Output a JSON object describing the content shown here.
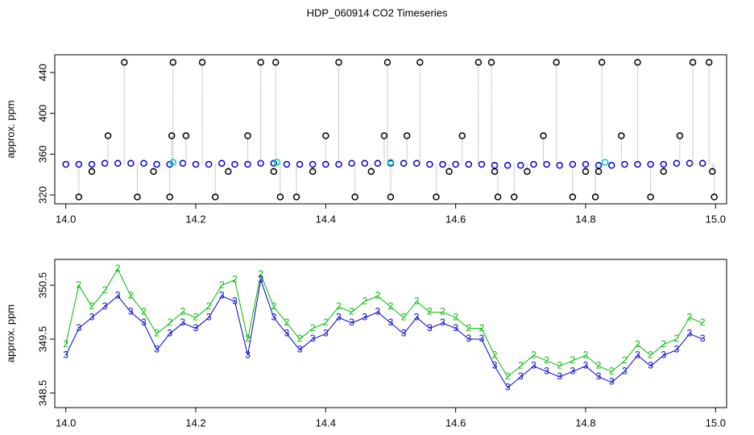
{
  "title": "HDP_060914  CO2 Timeseries",
  "chart_data": [
    {
      "type": "scatter",
      "ylabel": "approx. ppm",
      "xlim": [
        13.983,
        15.017
      ],
      "ylim": [
        311.3,
        457.4
      ],
      "xticks": [
        {
          "value": 14,
          "label": "14.0"
        },
        {
          "value": 14.2,
          "label": "14.2"
        },
        {
          "value": 14.4,
          "label": "14.4"
        },
        {
          "value": 14.6,
          "label": "14.6"
        },
        {
          "value": 14.8,
          "label": "14.8"
        },
        {
          "value": 15,
          "label": "15.0"
        }
      ],
      "yticks": [
        320,
        360,
        400,
        440
      ],
      "series": [
        {
          "color": "#0000cc",
          "x": [
            14.0,
            14.02,
            14.04,
            14.06,
            14.08,
            14.1,
            14.12,
            14.14,
            14.16,
            14.18,
            14.2,
            14.22,
            14.24,
            14.26,
            14.28,
            14.3,
            14.32,
            14.34,
            14.36,
            14.38,
            14.4,
            14.42,
            14.44,
            14.46,
            14.48,
            14.5,
            14.52,
            14.54,
            14.56,
            14.58,
            14.6,
            14.62,
            14.64,
            14.66,
            14.68,
            14.7,
            14.72,
            14.74,
            14.76,
            14.78,
            14.8,
            14.82,
            14.84,
            14.86,
            14.88,
            14.9,
            14.92,
            14.94,
            14.96,
            14.98
          ],
          "values": [
            350,
            350,
            350,
            351,
            351,
            351,
            351,
            350,
            350,
            351,
            350,
            350,
            351,
            350,
            350,
            351,
            351,
            350,
            350,
            350,
            350,
            350,
            351,
            351,
            351,
            351,
            351,
            351,
            350,
            350,
            350,
            350,
            350,
            349,
            349,
            349,
            350,
            350,
            349,
            350,
            350,
            349,
            349,
            350,
            350,
            350,
            350,
            351,
            351,
            351
          ]
        },
        {
          "color": "#000000",
          "stem_color": "#999999",
          "x": [
            14.02,
            14.04,
            14.065,
            14.09,
            14.11,
            14.135,
            14.16,
            14.163,
            14.165,
            14.185,
            14.21,
            14.23,
            14.25,
            14.28,
            14.3,
            14.32,
            14.323,
            14.33,
            14.355,
            14.38,
            14.4,
            14.42,
            14.445,
            14.47,
            14.49,
            14.495,
            14.5,
            14.525,
            14.545,
            14.57,
            14.59,
            14.61,
            14.635,
            14.655,
            14.66,
            14.665,
            14.69,
            14.71,
            14.735,
            14.755,
            14.78,
            14.8,
            14.815,
            14.82,
            14.825,
            14.855,
            14.88,
            14.9,
            14.92,
            14.945,
            14.965,
            14.99,
            14.995,
            14.998
          ],
          "values": [
            318,
            343,
            378,
            450,
            318,
            343,
            318,
            378,
            450,
            378,
            450,
            318,
            343,
            378,
            450,
            343,
            450,
            318,
            318,
            343,
            378,
            450,
            318,
            343,
            378,
            450,
            318,
            378,
            450,
            318,
            343,
            378,
            450,
            450,
            343,
            318,
            318,
            343,
            378,
            450,
            318,
            343,
            318,
            343,
            450,
            378,
            450,
            318,
            343,
            378,
            450,
            450,
            343,
            318
          ]
        },
        {
          "color": "#00cccc",
          "x": [
            14.165,
            14.325,
            14.5,
            14.83
          ],
          "values": [
            352,
            352,
            352,
            352
          ]
        }
      ]
    },
    {
      "type": "line",
      "ylabel": "approx. ppm",
      "xlim": [
        13.983,
        15.017
      ],
      "ylim": [
        348.23,
        350.98
      ],
      "xticks": [
        {
          "value": 14,
          "label": "14.0"
        },
        {
          "value": 14.2,
          "label": "14.2"
        },
        {
          "value": 14.4,
          "label": "14.4"
        },
        {
          "value": 14.6,
          "label": "14.6"
        },
        {
          "value": 14.8,
          "label": "14.8"
        },
        {
          "value": 15,
          "label": "15.0"
        }
      ],
      "yticks": [
        348.5,
        349.5,
        350.5
      ],
      "x": [
        14.0,
        14.02,
        14.04,
        14.06,
        14.08,
        14.1,
        14.12,
        14.14,
        14.16,
        14.18,
        14.2,
        14.22,
        14.24,
        14.26,
        14.28,
        14.3,
        14.32,
        14.34,
        14.36,
        14.38,
        14.4,
        14.42,
        14.44,
        14.46,
        14.48,
        14.5,
        14.52,
        14.54,
        14.56,
        14.58,
        14.6,
        14.62,
        14.64,
        14.66,
        14.68,
        14.7,
        14.72,
        14.74,
        14.76,
        14.78,
        14.8,
        14.82,
        14.84,
        14.86,
        14.88,
        14.9,
        14.92,
        14.94,
        14.96,
        14.98
      ],
      "series": [
        {
          "color": "#00bb00",
          "marker": "2",
          "values": [
            349.4,
            350.5,
            350.1,
            350.4,
            350.8,
            350.3,
            350.0,
            349.6,
            349.8,
            350.0,
            349.9,
            350.1,
            350.5,
            350.6,
            349.5,
            350.7,
            350.1,
            349.8,
            349.5,
            349.7,
            349.8,
            350.1,
            350.0,
            350.2,
            350.3,
            350.1,
            349.9,
            350.2,
            350.0,
            350.0,
            349.9,
            349.7,
            349.7,
            349.2,
            348.8,
            349.0,
            349.2,
            349.1,
            349.0,
            349.1,
            349.2,
            349.0,
            348.9,
            349.1,
            349.4,
            349.2,
            349.4,
            349.5,
            349.9,
            349.8
          ]
        },
        {
          "color": "#0000cc",
          "marker": "3",
          "values": [
            349.2,
            349.7,
            349.9,
            350.1,
            350.3,
            350.0,
            349.8,
            349.3,
            349.6,
            349.8,
            349.7,
            349.9,
            350.3,
            350.2,
            349.2,
            350.6,
            349.9,
            349.6,
            349.3,
            349.5,
            349.6,
            349.9,
            349.8,
            349.9,
            350.0,
            349.8,
            349.6,
            349.9,
            349.7,
            349.8,
            349.7,
            349.5,
            349.5,
            349.0,
            348.6,
            348.8,
            349.0,
            348.9,
            348.8,
            348.9,
            349.0,
            348.8,
            348.7,
            348.9,
            349.2,
            349.0,
            349.2,
            349.3,
            349.6,
            349.5
          ]
        }
      ]
    }
  ]
}
